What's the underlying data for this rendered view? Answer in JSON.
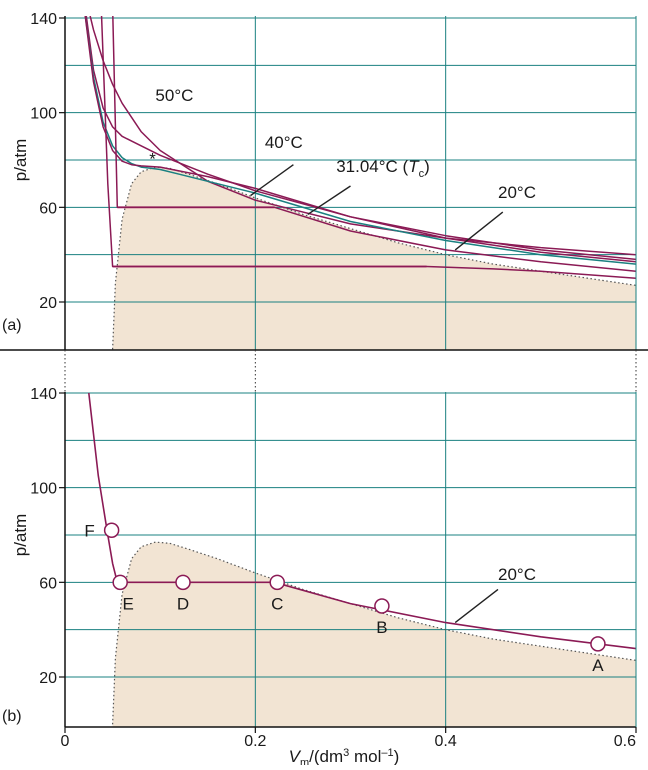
{
  "chart_data": [
    {
      "id": "a",
      "type": "line",
      "panel_label": "(a)",
      "ylabel": "p/atm",
      "xlim": [
        0,
        0.6
      ],
      "ylim": [
        0,
        140
      ],
      "yticks": [
        20,
        60,
        100,
        140
      ],
      "grid": true,
      "colors": {
        "isotherm": "#8b1a55",
        "critical": "#1a8080",
        "grid": "#1a8080",
        "fill": "#f2e4d3",
        "tie": "#b2185e"
      },
      "isotherms": [
        {
          "name": "50°C",
          "kind": "isotherm",
          "x": [
            0.024,
            0.03,
            0.04,
            0.05,
            0.06,
            0.08,
            0.1,
            0.15,
            0.2,
            0.3,
            0.4,
            0.5,
            0.6
          ],
          "y": [
            145,
            135,
            122,
            112,
            104,
            92,
            84,
            71,
            63,
            53,
            47,
            43,
            40
          ]
        },
        {
          "name": "40°C",
          "kind": "isotherm",
          "x": [
            0.021,
            0.03,
            0.04,
            0.05,
            0.06,
            0.07,
            0.08,
            0.1,
            0.15,
            0.2,
            0.3,
            0.4,
            0.5,
            0.6
          ],
          "y": [
            145,
            118,
            102,
            94,
            90,
            88,
            86,
            82,
            74,
            67,
            56,
            48,
            42,
            38
          ]
        },
        {
          "name": "31.04°C (Tc)",
          "kind": "critical",
          "x": [
            0.02,
            0.03,
            0.04,
            0.05,
            0.06,
            0.07,
            0.08,
            0.09,
            0.1,
            0.12,
            0.15,
            0.2,
            0.3,
            0.4,
            0.5,
            0.6
          ],
          "y": [
            145,
            115,
            96,
            86,
            81,
            78.5,
            77,
            76.5,
            76,
            74,
            71,
            66,
            54,
            46,
            40,
            36
          ]
        },
        {
          "name": "31.04°C upper",
          "kind": "isotherm",
          "x": [
            0.02,
            0.03,
            0.04,
            0.05,
            0.06,
            0.07,
            0.08,
            0.1,
            0.15,
            0.2,
            0.3,
            0.4,
            0.5,
            0.6
          ],
          "y": [
            145,
            113,
            94,
            84,
            79.5,
            78,
            77.5,
            77,
            73,
            68,
            56,
            47,
            41,
            37
          ]
        },
        {
          "name": "20°C",
          "kind": "isotherm",
          "x": [
            0.05,
            0.055,
            0.22,
            0.3,
            0.4,
            0.5,
            0.6
          ],
          "y": [
            145,
            60,
            60,
            50,
            42,
            37,
            33
          ]
        },
        {
          "name": "low",
          "kind": "isotherm",
          "x": [
            0.038,
            0.045,
            0.05,
            0.05,
            0.38,
            0.45,
            0.5,
            0.6
          ],
          "y": [
            145,
            70,
            35,
            35,
            35,
            34,
            33,
            30
          ]
        }
      ],
      "coexistence": {
        "x": [
          0.05,
          0.053,
          0.06,
          0.07,
          0.08,
          0.095,
          0.11,
          0.13,
          0.16,
          0.2,
          0.25,
          0.3,
          0.35,
          0.4,
          0.45,
          0.5,
          0.55,
          0.6
        ],
        "y": [
          0,
          28,
          55,
          70,
          75,
          77,
          76.5,
          74,
          70,
          64,
          57,
          51,
          45,
          40,
          36,
          33,
          30,
          27
        ]
      },
      "tie_lines": [
        {
          "x": [
            0.055,
            0.22
          ],
          "y": [
            60,
            60
          ]
        },
        {
          "x": [
            0.05,
            0.38
          ],
          "y": [
            35,
            35
          ]
        }
      ],
      "annotations": [
        {
          "text": "50°C",
          "x": 0.095,
          "y": 105
        },
        {
          "text": "40°C",
          "x": 0.21,
          "y": 85
        },
        {
          "text": "31.04°C (",
          "italic": "T",
          "sub": "c",
          "close": ")",
          "x": 0.285,
          "y": 75
        },
        {
          "text": "20°C",
          "x": 0.455,
          "y": 64
        },
        {
          "text": "*",
          "x": 0.092,
          "y": 78
        }
      ],
      "leaders": [
        {
          "x": [
            0.195,
            0.24
          ],
          "y": [
            65,
            78
          ]
        },
        {
          "x": [
            0.255,
            0.3
          ],
          "y": [
            57,
            69
          ]
        },
        {
          "x": [
            0.41,
            0.46
          ],
          "y": [
            42,
            58
          ]
        }
      ]
    },
    {
      "id": "b",
      "type": "line",
      "panel_label": "(b)",
      "xlabel": "Vm/(dm3 mol−1)",
      "xlabel_main": "V",
      "xlabel_sub": "m",
      "xlabel_rest": "/(dm",
      "xlabel_sup1": "3",
      "xlabel_rest2": " mol",
      "xlabel_sup2": "–1",
      "xlabel_end": ")",
      "ylabel": "p/atm",
      "xlim": [
        0,
        0.6
      ],
      "ylim": [
        0,
        140
      ],
      "xticks": [
        0,
        0.2,
        0.4,
        0.6
      ],
      "xtick_labels": [
        "0",
        "0.2",
        "0.4",
        "0.6"
      ],
      "yticks": [
        20,
        60,
        100,
        140
      ],
      "grid": true,
      "isotherm": {
        "name": "20°C",
        "x": [
          0.025,
          0.035,
          0.045,
          0.05,
          0.055,
          0.22,
          0.3,
          0.4,
          0.5,
          0.6
        ],
        "y": [
          140,
          105,
          80,
          68,
          60,
          60,
          51,
          43,
          37,
          32
        ]
      },
      "coexistence": {
        "x": [
          0.05,
          0.053,
          0.06,
          0.07,
          0.08,
          0.095,
          0.11,
          0.13,
          0.16,
          0.2,
          0.25,
          0.3,
          0.35,
          0.4,
          0.45,
          0.5,
          0.55,
          0.6
        ],
        "y": [
          0,
          28,
          55,
          70,
          75,
          77,
          76.5,
          74,
          70,
          64,
          57,
          51,
          45,
          40,
          36,
          33,
          30,
          27
        ]
      },
      "points": [
        {
          "label": "A",
          "x": 0.56,
          "y": 34,
          "label_dx": 0,
          "label_dy": 1
        },
        {
          "label": "B",
          "x": 0.333,
          "y": 50,
          "label_dx": 0,
          "label_dy": 1
        },
        {
          "label": "C",
          "x": 0.223,
          "y": 60,
          "label_dx": 0,
          "label_dy": 1
        },
        {
          "label": "D",
          "x": 0.124,
          "y": 60,
          "label_dx": 0,
          "label_dy": 1
        },
        {
          "label": "E",
          "x": 0.058,
          "y": 60,
          "label_dx": 1,
          "label_dy": 1
        },
        {
          "label": "F",
          "x": 0.049,
          "y": 82,
          "label_dx": -1,
          "label_dy": 0
        }
      ],
      "annotations": [
        {
          "text": "20°C",
          "x": 0.455,
          "y": 61
        }
      ],
      "leaders": [
        {
          "x": [
            0.41,
            0.455
          ],
          "y": [
            43,
            57
          ]
        }
      ]
    }
  ]
}
